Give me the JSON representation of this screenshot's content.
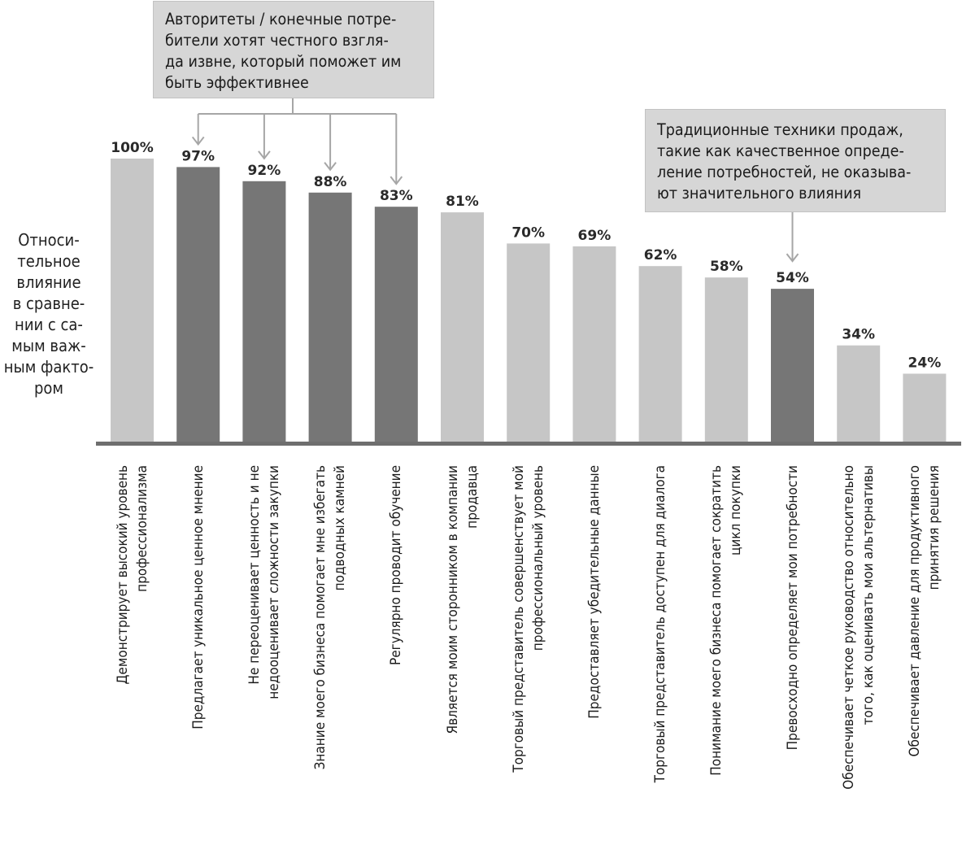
{
  "chart_data": {
    "type": "bar",
    "ylabel_lines": [
      "Относи-",
      "тельное",
      "влияние",
      "в сравне-",
      "нии с са-",
      "мым важ-",
      "ным факто-",
      "ром"
    ],
    "ylim": [
      0,
      100
    ],
    "categories": [
      [
        "Демонстрирует высокий уровень",
        "профессионализма"
      ],
      [
        "Предлагает уникальное ценное мнение"
      ],
      [
        "Не переоценивает ценность и не",
        "недооценивает сложности закупки"
      ],
      [
        "Знание моего бизнеса помогает мне избегать",
        "подводных камней"
      ],
      [
        "Регулярно проводит обучение"
      ],
      [
        "Является моим сторонником в компании",
        "продавца"
      ],
      [
        "Торговый представитель совершенствует мой",
        "профессиональный уровень"
      ],
      [
        "Предоставляет убедительные данные"
      ],
      [
        "Торговый представитель доступен для диалога"
      ],
      [
        "Понимание моего бизнеса помогает сократить",
        "цикл покупки"
      ],
      [
        "Превосходно определяет мои потребности"
      ],
      [
        "Обеспечивает четкое руководство относительно",
        "того, как оценивать мои альтернативы"
      ],
      [
        "Обеспечивает давление для продуктивного",
        "принятия решения"
      ]
    ],
    "values": [
      100,
      97,
      92,
      88,
      83,
      81,
      70,
      69,
      62,
      58,
      54,
      34,
      24
    ],
    "value_labels": [
      "100%",
      "97%",
      "92%",
      "88%",
      "83%",
      "81%",
      "70%",
      "69%",
      "62%",
      "58%",
      "54%",
      "34%",
      "24%"
    ],
    "highlighted": [
      false,
      true,
      true,
      true,
      true,
      false,
      false,
      false,
      false,
      false,
      true,
      false,
      false
    ],
    "annotations": [
      {
        "lines": [
          "Авторитеты / конечные потре-",
          "бители хотят честного взгля-",
          "да извне, который поможет им",
          "быть эффективнее"
        ],
        "points_to": [
          1,
          2,
          3,
          4
        ]
      },
      {
        "lines": [
          "Традиционные техники продаж,",
          "такие как качественное опреде-",
          "ление потребностей, не оказыва-",
          "ют значительного влияния"
        ],
        "points_to": [
          10
        ]
      }
    ]
  },
  "colors": {
    "bar_dark": "#767676",
    "bar_light": "#c6c6c6",
    "axis": "#6e6e6e",
    "callout_bg": "#d6d6d6",
    "arrow": "#a6a6a6"
  }
}
